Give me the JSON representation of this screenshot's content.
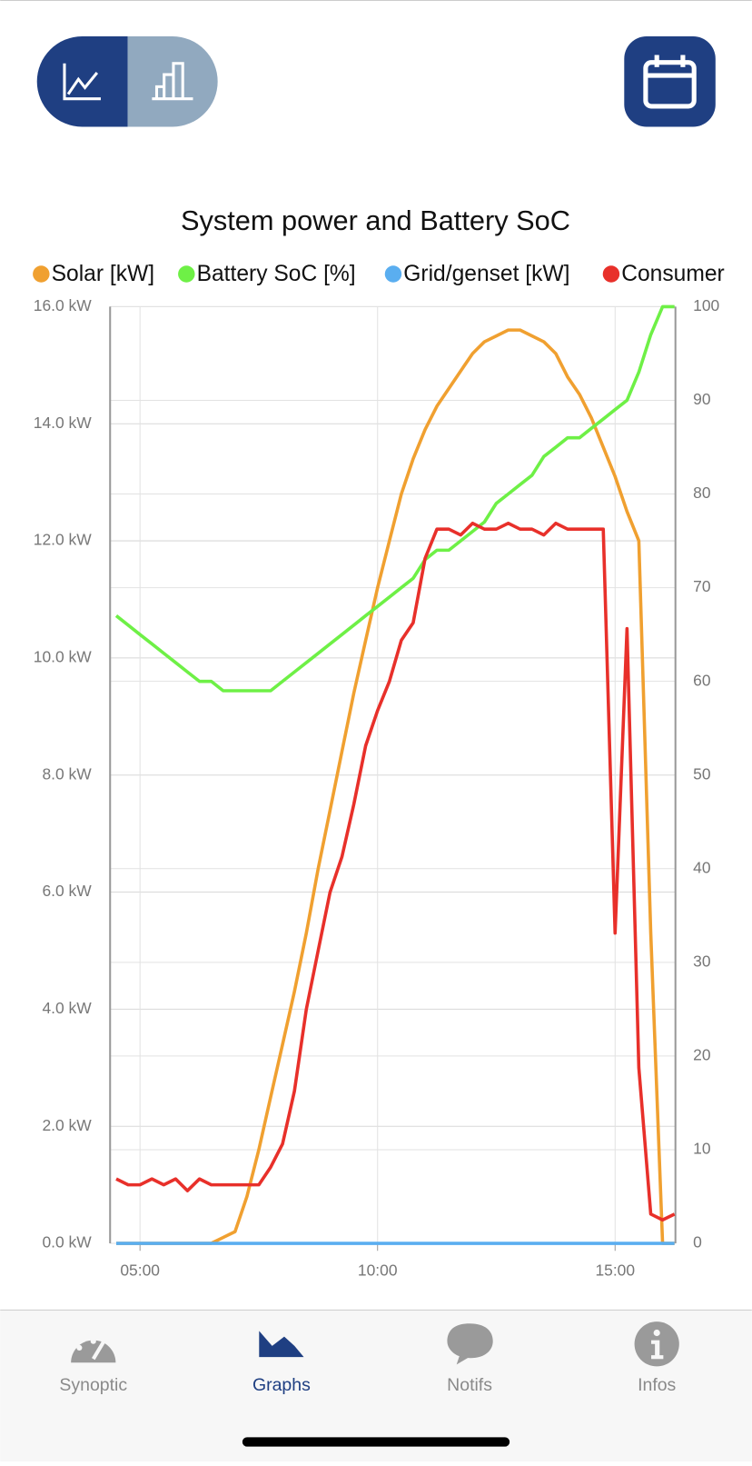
{
  "chart_data": {
    "type": "line",
    "title": "System power and Battery SoC",
    "x": [
      4.5,
      4.75,
      5,
      5.25,
      5.5,
      5.75,
      6,
      6.25,
      6.5,
      6.75,
      7,
      7.25,
      7.5,
      7.75,
      8,
      8.25,
      8.5,
      8.75,
      9,
      9.25,
      9.5,
      9.75,
      10,
      10.25,
      10.5,
      10.75,
      11,
      11.25,
      11.5,
      11.75,
      12,
      12.25,
      12.5,
      12.75,
      13,
      13.25,
      13.5,
      13.75,
      14,
      14.25,
      14.5,
      14.75,
      15,
      15.25,
      15.5,
      15.75,
      16,
      16.25
    ],
    "series": [
      {
        "name": "Solar [kW]",
        "color": "#f0a030",
        "values": [
          0,
          0,
          0,
          0,
          0,
          0,
          0,
          0,
          0,
          0.1,
          0.2,
          0.8,
          1.6,
          2.5,
          3.4,
          4.3,
          5.3,
          6.4,
          7.4,
          8.4,
          9.4,
          10.3,
          11.2,
          12.0,
          12.8,
          13.4,
          13.9,
          14.3,
          14.6,
          14.9,
          15.2,
          15.4,
          15.5,
          15.6,
          15.6,
          15.5,
          15.4,
          15.2,
          14.8,
          14.5,
          14.1,
          13.6,
          13.1,
          12.5,
          12.0,
          5.3,
          0,
          0
        ]
      },
      {
        "name": "Battery SoC [%]",
        "color": "#6ef046",
        "axis": "y2",
        "values": [
          67,
          66,
          65,
          64,
          63,
          62,
          61,
          60,
          60,
          59,
          59,
          59,
          59,
          59,
          60,
          61,
          62,
          63,
          64,
          65,
          66,
          67,
          68,
          69,
          70,
          71,
          73,
          74,
          74,
          75,
          76,
          77,
          79,
          80,
          81,
          82,
          84,
          85,
          86,
          86,
          87,
          88,
          89,
          90,
          93,
          97,
          100,
          100
        ]
      },
      {
        "name": "Grid/genset [kW]",
        "color": "#5aaef0",
        "values": [
          0,
          0,
          0,
          0,
          0,
          0,
          0,
          0,
          0,
          0,
          0,
          0,
          0,
          0,
          0,
          0,
          0,
          0,
          0,
          0,
          0,
          0,
          0,
          0,
          0,
          0,
          0,
          0,
          0,
          0,
          0,
          0,
          0,
          0,
          0,
          0,
          0,
          0,
          0,
          0,
          0,
          0,
          0,
          0,
          0,
          0,
          0,
          0
        ]
      },
      {
        "name": "Consumer",
        "color": "#e8302a",
        "values": [
          1.1,
          1.0,
          1.0,
          1.1,
          1.0,
          1.1,
          0.9,
          1.1,
          1.0,
          1.0,
          1.0,
          1.0,
          1.0,
          1.3,
          1.7,
          2.6,
          4.0,
          5.0,
          6.0,
          6.6,
          7.5,
          8.5,
          9.1,
          9.6,
          10.3,
          10.6,
          11.7,
          12.2,
          12.2,
          12.1,
          12.3,
          12.2,
          12.2,
          12.3,
          12.2,
          12.2,
          12.1,
          12.3,
          12.2,
          12.2,
          12.2,
          12.2,
          5.3,
          10.5,
          3.0,
          0.5,
          0.4,
          0.5
        ]
      }
    ],
    "xlim": [
      4.37,
      16.27
    ],
    "xticks": [
      {
        "value": 5,
        "label": "05:00"
      },
      {
        "value": 10,
        "label": "10:00"
      },
      {
        "value": 15,
        "label": "15:00"
      }
    ],
    "ylim": [
      0,
      16
    ],
    "yticks": [
      {
        "value": 0,
        "label": "0.0 kW"
      },
      {
        "value": 2,
        "label": "2.0 kW"
      },
      {
        "value": 4,
        "label": "4.0 kW"
      },
      {
        "value": 6,
        "label": "6.0 kW"
      },
      {
        "value": 8,
        "label": "8.0 kW"
      },
      {
        "value": 10,
        "label": "10.0 kW"
      },
      {
        "value": 12,
        "label": "12.0 kW"
      },
      {
        "value": 14,
        "label": "14.0 kW"
      },
      {
        "value": 16,
        "label": "16.0 kW"
      }
    ],
    "y2lim": [
      0,
      100
    ],
    "y2ticks": [
      0,
      10,
      20,
      30,
      40,
      50,
      60,
      70,
      80,
      90,
      100
    ],
    "grid": true
  },
  "tabs": [
    "Synoptic",
    "Graphs",
    "Notifs",
    "Infos"
  ]
}
